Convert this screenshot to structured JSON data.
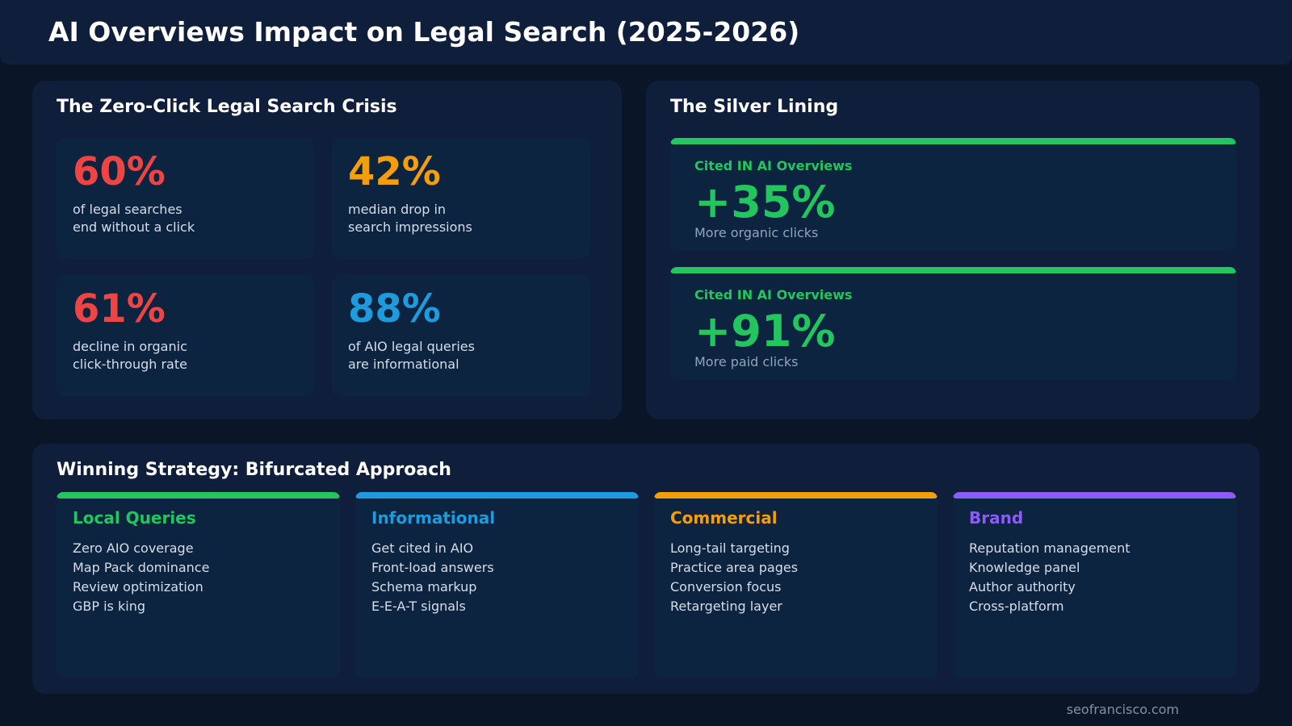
{
  "title": "AI Overviews Impact on Legal Search (2025-2026)",
  "crisis": {
    "heading": "The Zero-Click Legal Search Crisis",
    "stats": [
      {
        "value": "60%",
        "line1": "of legal searches",
        "line2": "end without a click",
        "color": "#ef4444"
      },
      {
        "value": "42%",
        "line1": "median drop in",
        "line2": "search impressions",
        "color": "#f59e0b"
      },
      {
        "value": "61%",
        "line1": "decline in organic",
        "line2": "click-through rate",
        "color": "#ef4444"
      },
      {
        "value": "88%",
        "line1": "of AIO legal queries",
        "line2": "are informational",
        "color": "#1e9bdc"
      }
    ]
  },
  "silver": {
    "heading": "The Silver Lining",
    "cards": [
      {
        "label": "Cited IN AI Overviews",
        "value": "+35%",
        "sub": "More organic clicks"
      },
      {
        "label": "Cited IN AI Overviews",
        "value": "+91%",
        "sub": "More paid clicks"
      }
    ]
  },
  "strategy": {
    "heading": "Winning Strategy: Bifurcated Approach",
    "columns": [
      {
        "title": "Local Queries",
        "color": "#22c55e",
        "items": [
          "Zero AIO coverage",
          "Map Pack dominance",
          "Review optimization",
          "GBP is king"
        ]
      },
      {
        "title": "Informational",
        "color": "#1e9bdc",
        "items": [
          "Get cited in AIO",
          "Front-load answers",
          "Schema markup",
          "E-E-A-T signals"
        ]
      },
      {
        "title": "Commercial",
        "color": "#f59e0b",
        "items": [
          "Long-tail targeting",
          "Practice area pages",
          "Conversion focus",
          "Retargeting layer"
        ]
      },
      {
        "title": "Brand",
        "color": "#8b5cf6",
        "items": [
          "Reputation management",
          "Knowledge panel",
          "Author authority",
          "Cross-platform"
        ]
      }
    ]
  },
  "footer": "seofrancisco.com"
}
